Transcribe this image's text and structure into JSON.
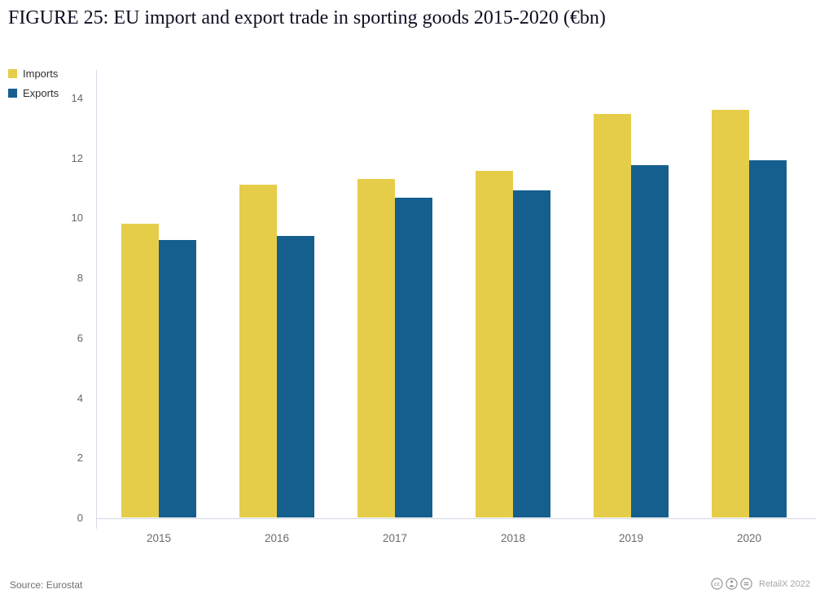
{
  "title": "FIGURE 25: EU import and export trade in sporting goods 2015-2020 (€bn)",
  "source": "Source: Eurostat",
  "branding": {
    "label": "RetailX 2022",
    "icons": [
      "cc-icon",
      "cc-by-icon",
      "cc-nd-icon"
    ]
  },
  "colors": {
    "imports": "#e6cd49",
    "exports": "#155f8f",
    "title_text": "#0e0e21",
    "axis_line": "#d7dbe7",
    "tick_text": "#676767",
    "source_text": "#6f6f6f",
    "branding_gray": "#8e8e8e"
  },
  "chart_data": {
    "type": "bar",
    "title": "FIGURE 25: EU import and export trade in sporting goods 2015-2020 (€bn)",
    "categories": [
      "2015",
      "2016",
      "2017",
      "2018",
      "2019",
      "2020"
    ],
    "series": [
      {
        "name": "Imports",
        "color": "#e6cd49",
        "values": [
          9.8,
          11.1,
          11.3,
          11.55,
          13.45,
          13.6
        ]
      },
      {
        "name": "Exports",
        "color": "#155f8f",
        "values": [
          9.25,
          9.4,
          10.65,
          10.9,
          11.75,
          11.9
        ]
      }
    ],
    "xlabel": "",
    "ylabel": "",
    "ylim": [
      0,
      14
    ],
    "yticks": [
      0,
      2,
      4,
      6,
      8,
      10,
      12,
      14
    ],
    "grid": false,
    "legend_position": "top-left",
    "units": "€bn"
  }
}
